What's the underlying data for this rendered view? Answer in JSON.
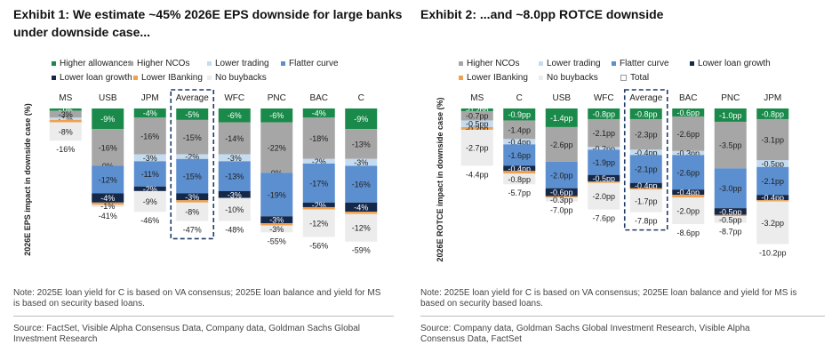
{
  "colors": {
    "allowances": "#1a8a4a",
    "ncos": "#a6a6a6",
    "trading": "#c5dcf0",
    "flatter": "#5b8fd0",
    "loan_growth": "#14284a",
    "ibanking": "#f0a14e",
    "buybacks": "#ececec",
    "total": "#ffffff"
  },
  "panel1": {
    "title": "Exhibit 1: We estimate ~45% 2026E EPS downside for large banks under downside case...",
    "ylabel": "2026E EPS impact in downside case (%)",
    "legend": [
      {
        "label": "Higher allowances",
        "color": "#1a8a4a"
      },
      {
        "label": "Higher NCOs",
        "color": "#a6a6a6"
      },
      {
        "label": "Lower trading",
        "color": "#c5dcf0"
      },
      {
        "label": "Flatter curve",
        "color": "#5b8fd0"
      },
      {
        "label": "Lower loan growth",
        "color": "#14284a"
      },
      {
        "label": "Lower IBanking",
        "color": "#f0a14e"
      },
      {
        "label": "No buybacks",
        "color": "#ececec"
      }
    ],
    "note": "Note: 2025E loan yield for C is based on VA consensus; 2025E loan balance and yield for MS is based on security based loans.",
    "source": "Source: FactSet, Visible Alpha Consensus Data, Company data, Goldman Sachs Global Investment Research"
  },
  "panel2": {
    "title": "Exhibit 2: ...and ~8.0pp ROTCE downside",
    "ylabel": "2026E ROTCE impact in downside case (%)",
    "legend": [
      {
        "label": "Higher NCOs",
        "color": "#a6a6a6"
      },
      {
        "label": "Lower trading",
        "color": "#c5dcf0"
      },
      {
        "label": "Flatter curve",
        "color": "#5b8fd0"
      },
      {
        "label": "Lower loan growth",
        "color": "#14284a"
      },
      {
        "label": "Lower IBanking",
        "color": "#f0a14e"
      },
      {
        "label": "No buybacks",
        "color": "#ececec"
      },
      {
        "label": "Total",
        "color": "#ffffff"
      }
    ],
    "note": "Note: 2025E loan yield for C is based on VA consensus; 2025E loan balance and yield for MS is based on security based loans.",
    "source": "Source: Company data, Goldman Sachs Global Investment Research, Visible Alpha Consensus Data, FactSet"
  },
  "chart_data": [
    {
      "type": "bar",
      "stacked": true,
      "title": "Exhibit 1: We estimate ~45% 2026E EPS downside for large banks under downside case...",
      "ylabel": "2026E EPS impact in downside case (%)",
      "unit": "%",
      "highlight_category": "Average",
      "categories": [
        "MS",
        "USB",
        "JPM",
        "Average",
        "WFC",
        "PNC",
        "BAC",
        "C"
      ],
      "series": [
        {
          "name": "Higher allowances",
          "color_key": "allowances",
          "values": [
            -1,
            -9,
            -4,
            -5,
            -6,
            -6,
            -4,
            -9
          ],
          "labels": [
            "-1%",
            "-9%",
            "-4%",
            "-5%",
            "-6%",
            "-6%",
            "-4%",
            "-9%"
          ]
        },
        {
          "name": "Higher NCOs",
          "color_key": "ncos",
          "values": [
            -3,
            -16,
            -16,
            -15,
            -14,
            -22,
            -18,
            -13
          ],
          "labels": [
            "-3%",
            "-16%",
            "-16%",
            "-15%",
            "-14%",
            "-22%",
            "-18%",
            "-13%"
          ]
        },
        {
          "name": "Lower trading",
          "color_key": "trading",
          "values": [
            -1,
            0,
            -3,
            -2,
            -3,
            0,
            -2,
            -3
          ],
          "labels": [
            "-1%",
            "0%",
            "-3%",
            "-2%",
            "-3%",
            "0%",
            "-2%",
            "-3%"
          ]
        },
        {
          "name": "Flatter curve",
          "color_key": "flatter",
          "values": [
            0,
            -12,
            -11,
            -15,
            -13,
            -19,
            -17,
            -16
          ],
          "labels": [
            "0%",
            "-12%",
            "-11%",
            "-15%",
            "-13%",
            "-19%",
            "-17%",
            "-16%"
          ]
        },
        {
          "name": "Lower loan growth",
          "color_key": "loan_growth",
          "values": [
            0,
            -4,
            -2,
            -3,
            -3,
            -3,
            -2,
            -4
          ],
          "labels": [
            "0%",
            "-4%",
            "-2%",
            "-3%",
            "-3%",
            "-3%",
            "-2%",
            "-4%"
          ]
        },
        {
          "name": "Lower IBanking",
          "color_key": "ibanking",
          "values": [
            -1,
            -1,
            0,
            -1,
            0,
            -1,
            -1,
            -1
          ],
          "labels": [
            "",
            "",
            "",
            "",
            "",
            "",
            "",
            ""
          ]
        },
        {
          "name": "No buybacks",
          "color_key": "buybacks",
          "values": [
            -8,
            -1,
            -9,
            -8,
            -10,
            -3,
            -12,
            -12
          ],
          "labels": [
            "-8%",
            "-1%",
            "-9%",
            "-8%",
            "-10%",
            "-3%",
            "-12%",
            "-12%"
          ]
        }
      ],
      "totals": [
        "-16%",
        "-41%",
        "-46%",
        "-47%",
        "-48%",
        "-55%",
        "-56%",
        "-59%"
      ],
      "total_values": [
        -16,
        -41,
        -46,
        -47,
        -48,
        -55,
        -56,
        -59
      ],
      "ylim": [
        -62,
        0
      ]
    },
    {
      "type": "bar",
      "stacked": true,
      "title": "Exhibit 2: ...and ~8.0pp ROTCE downside",
      "ylabel": "2026E ROTCE impact in downside case (%)",
      "unit": "pp",
      "highlight_category": "Average",
      "categories": [
        "MS",
        "C",
        "USB",
        "WFC",
        "Average",
        "BAC",
        "PNC",
        "JPM"
      ],
      "series": [
        {
          "name": "Higher allowances",
          "color_key": "allowances",
          "values": [
            -0.2,
            -0.9,
            -1.4,
            -0.8,
            -0.8,
            -0.6,
            -1.0,
            -0.8
          ],
          "labels": [
            "-0.2pp",
            "-0.9pp",
            "-1.4pp",
            "-0.8pp",
            "-0.8pp",
            "-0.6pp",
            "-1.0pp",
            "-0.8pp"
          ]
        },
        {
          "name": "Higher NCOs",
          "color_key": "ncos",
          "values": [
            -0.7,
            -1.4,
            -2.6,
            -2.1,
            -2.3,
            -2.6,
            -3.5,
            -3.1
          ],
          "labels": [
            "-0.7pp",
            "-1.4pp",
            "-2.6pp",
            "-2.1pp",
            "-2.3pp",
            "-2.6pp",
            "-3.5pp",
            "-3.1pp"
          ]
        },
        {
          "name": "Lower trading",
          "color_key": "trading",
          "values": [
            -0.5,
            -0.4,
            0,
            -0.2,
            -0.4,
            -0.3,
            0,
            -0.5
          ],
          "labels": [
            "-0.5pp",
            "-0.4pp",
            "",
            "-0.2pp",
            "-0.4pp",
            "-0.3pp",
            "",
            "-0.5pp"
          ]
        },
        {
          "name": "Flatter curve",
          "color_key": "flatter",
          "values": [
            0,
            -1.6,
            -2.0,
            -1.9,
            -2.1,
            -2.6,
            -3.0,
            -2.1
          ],
          "labels": [
            "",
            "-1.6pp",
            "-2.0pp",
            "-1.9pp",
            "-2.1pp",
            "-2.6pp",
            "-3.0pp",
            "-2.1pp"
          ]
        },
        {
          "name": "Lower loan growth",
          "color_key": "loan_growth",
          "values": [
            0,
            -0.4,
            -0.6,
            -0.5,
            -0.4,
            -0.4,
            -0.5,
            -0.4
          ],
          "labels": [
            "",
            "-0.4pp",
            "-0.6pp",
            "-0.5pp",
            "-0.4pp",
            "-0.4pp",
            "-0.5pp",
            "-0.4pp"
          ]
        },
        {
          "name": "Lower IBanking",
          "color_key": "ibanking",
          "values": [
            -0.2,
            -0.2,
            -0.1,
            -0.1,
            -0.1,
            -0.2,
            -0.1,
            -0.1
          ],
          "labels": [
            "-0.2pp",
            "",
            "",
            "",
            "",
            "",
            "",
            ""
          ]
        },
        {
          "name": "No buybacks",
          "color_key": "buybacks",
          "values": [
            -2.7,
            -0.8,
            -0.3,
            -2.0,
            -1.7,
            -2.0,
            -0.5,
            -3.2
          ],
          "labels": [
            "-2.7pp",
            "-0.8pp",
            "-0.3pp",
            "-2.0pp",
            "-1.7pp",
            "-2.0pp",
            "-0.5pp",
            "-3.2pp"
          ]
        }
      ],
      "totals": [
        "-4.4pp",
        "-5.7pp",
        "-7.0pp",
        "-7.6pp",
        "-7.8pp",
        "-8.6pp",
        "-8.7pp",
        "-10.2pp"
      ],
      "total_values": [
        -4.4,
        -5.7,
        -7.0,
        -7.6,
        -7.8,
        -8.6,
        -8.7,
        -10.2
      ],
      "ylim": [
        -10.7,
        0
      ]
    }
  ]
}
